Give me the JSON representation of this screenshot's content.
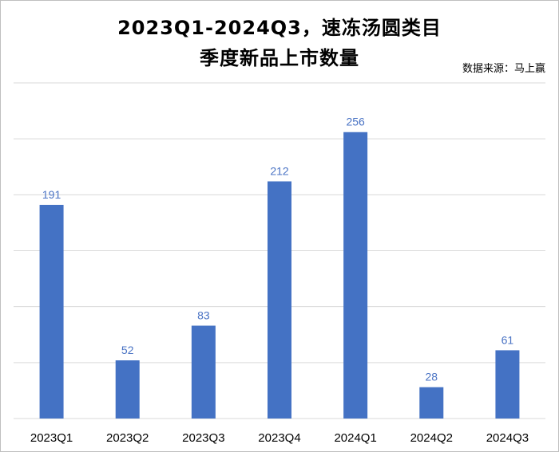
{
  "chart_data": {
    "type": "bar",
    "title_line1": "2023Q1-2024Q3，速冻汤圆类目",
    "title_line2": "季度新品上市数量",
    "source": "数据来源：马上赢",
    "categories": [
      "2023Q1",
      "2023Q2",
      "2023Q3",
      "2023Q4",
      "2024Q1",
      "2024Q2",
      "2024Q3"
    ],
    "values": [
      191,
      52,
      83,
      212,
      256,
      28,
      61
    ],
    "ylim": [
      0,
      300
    ],
    "grid": true,
    "bar_color": "#4472c4",
    "label_color": "#4a73c4",
    "grid_color": "#d9d9d9"
  }
}
